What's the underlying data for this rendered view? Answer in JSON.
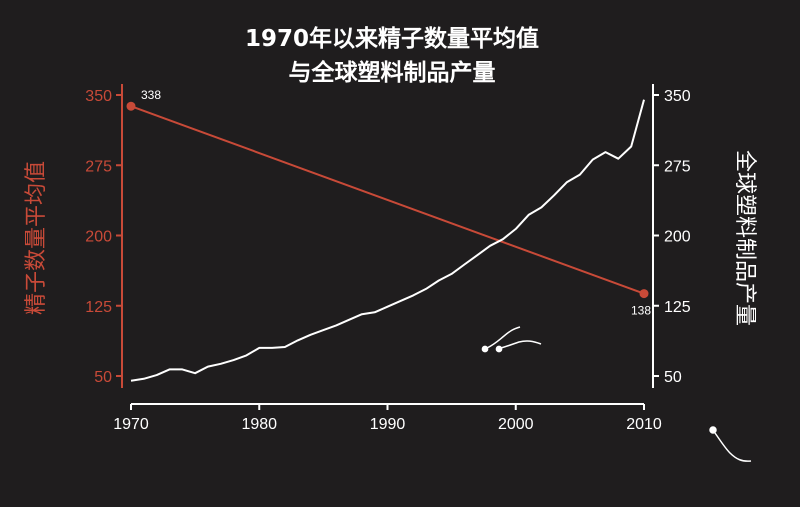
{
  "chart_data": {
    "type": "line",
    "title": "1970年以来精子数量平均值\n与全球塑料制品产量",
    "xlabel": "",
    "ylabel_left": "精子数量平均值",
    "ylabel_right": "全球塑料制品产量",
    "xlim": [
      1970,
      2010
    ],
    "ylim": [
      30,
      355
    ],
    "x_ticks": [
      "1970",
      "1980",
      "1990",
      "2000",
      "2010"
    ],
    "y_ticks_left": [
      "350",
      "275",
      "200",
      "125",
      "50"
    ],
    "y_ticks_right": [
      "350",
      "275",
      "200",
      "125",
      "50"
    ],
    "colors": {
      "left": "#c84a38",
      "right": "#ffffff",
      "background": "#1f1d1e"
    },
    "series": [
      {
        "axis": "left",
        "x": [
          1970,
          2010
        ],
        "y": [
          338,
          138
        ],
        "labels": [
          "338",
          "138"
        ]
      },
      {
        "axis": "right",
        "x": [
          1970,
          1971,
          1972,
          1973,
          1974,
          1975,
          1976,
          1977,
          1978,
          1979,
          1980,
          1981,
          1982,
          1983,
          1984,
          1985,
          1986,
          1987,
          1988,
          1989,
          1990,
          1991,
          1992,
          1993,
          1994,
          1995,
          1996,
          1997,
          1998,
          1999,
          2000,
          2001,
          2002,
          2003,
          2004,
          2005,
          2006,
          2007,
          2008,
          2009,
          2010
        ],
        "y": [
          45,
          47,
          51,
          57,
          57,
          53,
          60,
          63,
          67,
          72,
          80,
          80,
          81,
          88,
          94,
          99,
          104,
          110,
          116,
          118,
          124,
          130,
          136,
          143,
          152,
          159,
          169,
          179,
          189,
          196,
          207,
          222,
          230,
          243,
          257,
          265,
          281,
          289,
          282,
          295,
          345
        ]
      }
    ],
    "decorations": [
      "sperm-icon"
    ]
  }
}
